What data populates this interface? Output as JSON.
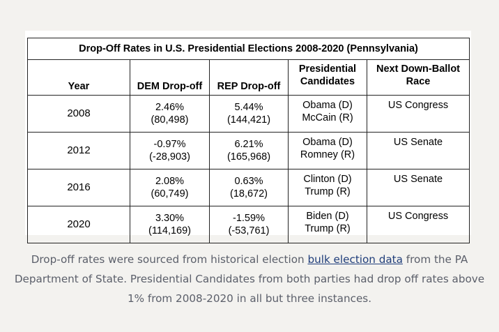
{
  "table": {
    "title": "Drop-Off Rates in U.S. Presidential Elections 2008-2020 (Pennsylvania)",
    "headers": {
      "year": "Year",
      "dem": "DEM Drop-off",
      "rep": "REP Drop-off",
      "cand_line1": "Presidential",
      "cand_line2": "Candidates",
      "race_line1": "Next Down-Ballot",
      "race_line2": "Race"
    },
    "rows": [
      {
        "year": "2008",
        "dem_pct": "2.46%",
        "dem_votes": "(80,498)",
        "rep_pct": "5.44%",
        "rep_votes": "(144,421)",
        "cand_dem": "Obama (D)",
        "cand_rep": "McCain (R)",
        "race": "US Congress"
      },
      {
        "year": "2012",
        "dem_pct": "-0.97%",
        "dem_votes": "(-28,903)",
        "rep_pct": "6.21%",
        "rep_votes": "(165,968)",
        "cand_dem": "Obama (D)",
        "cand_rep": "Romney (R)",
        "race": "US Senate"
      },
      {
        "year": "2016",
        "dem_pct": "2.08%",
        "dem_votes": "(60,749)",
        "rep_pct": "0.63%",
        "rep_votes": "(18,672)",
        "cand_dem": "Clinton (D)",
        "cand_rep": "Trump (R)",
        "race": "US Senate"
      },
      {
        "year": "2020",
        "dem_pct": "3.30%",
        "dem_votes": "(114,169)",
        "rep_pct": "-1.59%",
        "rep_votes": "(-53,761)",
        "cand_dem": "Biden (D)",
        "cand_rep": "Trump (R)",
        "race": "US Congress"
      }
    ]
  },
  "caption": {
    "before_link": "Drop-off rates were sourced from historical election ",
    "link_text": "bulk election data",
    "after_link": " from the PA Department of State. Presidential Candidates from both parties had drop off rates above 1% from 2008-2020 in all but three instances."
  }
}
